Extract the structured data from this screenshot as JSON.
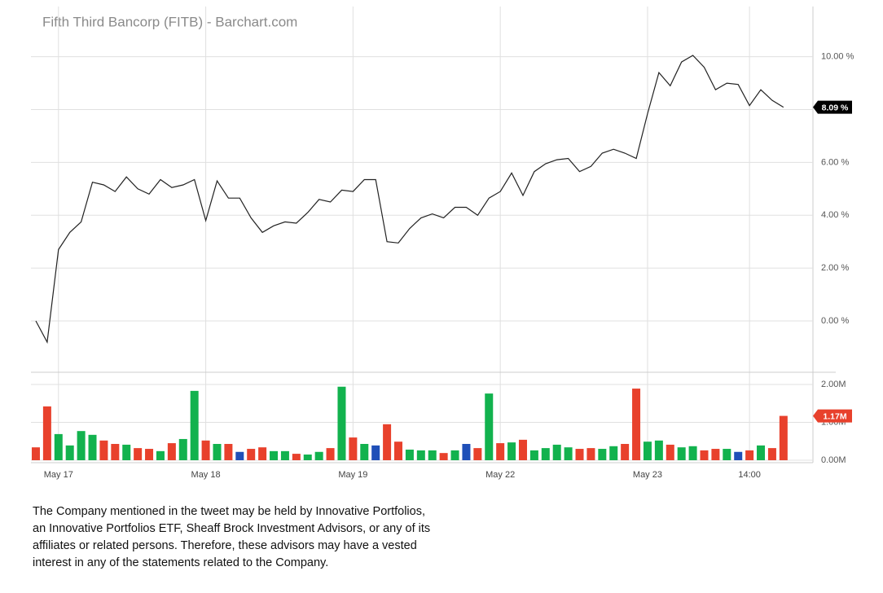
{
  "chart_data": [
    {
      "type": "line",
      "title": "Fifth Third Bancorp (FITB) - Barchart.com",
      "x": [
        0,
        1,
        2,
        3,
        4,
        5,
        6,
        7,
        8,
        9,
        10,
        11,
        12,
        13,
        14,
        15,
        16,
        17,
        18,
        19,
        20,
        21,
        22,
        23,
        24,
        25,
        26,
        27,
        28,
        29,
        30,
        31,
        32,
        33,
        34,
        35,
        36,
        37,
        38,
        39,
        40,
        41,
        42,
        43,
        44,
        45,
        46,
        47,
        48,
        49,
        50,
        51,
        52,
        53,
        54,
        55,
        56,
        57,
        58,
        59,
        60,
        61,
        62,
        63,
        64,
        65,
        66
      ],
      "xlim": [
        -0.43,
        68.6
      ],
      "values": [
        0.0,
        -0.8,
        2.7,
        3.35,
        3.75,
        5.25,
        5.15,
        4.9,
        5.45,
        5.0,
        4.8,
        5.35,
        5.05,
        5.15,
        5.35,
        3.8,
        5.3,
        4.65,
        4.65,
        3.9,
        3.35,
        3.6,
        3.75,
        3.7,
        4.1,
        4.6,
        4.5,
        4.95,
        4.9,
        5.35,
        5.35,
        3.0,
        2.95,
        3.5,
        3.9,
        4.05,
        3.9,
        4.3,
        4.3,
        4.0,
        4.65,
        4.9,
        5.6,
        4.75,
        5.65,
        5.95,
        6.1,
        6.15,
        5.65,
        5.85,
        6.35,
        6.5,
        6.35,
        6.15,
        7.85,
        9.4,
        8.9,
        9.8,
        10.05,
        9.6,
        8.75,
        9.0,
        8.95,
        8.15,
        8.75,
        8.35,
        8.09
      ],
      "color": "#222222",
      "ylim": [
        -1.88,
        11.9
      ],
      "yticks": [
        {
          "value": 0,
          "label": "0.00 %"
        },
        {
          "value": 2,
          "label": "2.00 %"
        },
        {
          "value": 4,
          "label": "4.00 %"
        },
        {
          "value": 6,
          "label": "6.00 %"
        },
        {
          "value": 8,
          "label": "8.00 %"
        },
        {
          "value": 10,
          "label": "10.00 %"
        }
      ],
      "grid": true,
      "last_label": {
        "value": 8.09,
        "label": "8.09 %",
        "color": "#000000"
      }
    },
    {
      "type": "bar",
      "x": [
        0,
        1,
        2,
        3,
        4,
        5,
        6,
        7,
        8,
        9,
        10,
        11,
        12,
        13,
        14,
        15,
        16,
        17,
        18,
        19,
        20,
        21,
        22,
        23,
        24,
        25,
        26,
        27,
        28,
        29,
        30,
        31,
        32,
        33,
        34,
        35,
        36,
        37,
        38,
        39,
        40,
        41,
        42,
        43,
        44,
        45,
        46,
        47,
        48,
        49,
        50,
        51,
        52,
        53,
        54,
        55,
        56,
        57,
        58,
        59,
        60,
        61,
        62,
        63,
        64,
        65,
        66
      ],
      "xlim": [
        -0.43,
        68.6
      ],
      "values": [
        0.34,
        1.42,
        0.69,
        0.39,
        0.77,
        0.67,
        0.52,
        0.43,
        0.41,
        0.32,
        0.3,
        0.24,
        0.45,
        0.56,
        1.83,
        0.52,
        0.43,
        0.43,
        0.22,
        0.3,
        0.34,
        0.24,
        0.24,
        0.17,
        0.15,
        0.22,
        0.32,
        1.94,
        0.6,
        0.43,
        0.39,
        0.95,
        0.49,
        0.28,
        0.26,
        0.26,
        0.19,
        0.26,
        0.43,
        0.32,
        1.76,
        0.45,
        0.47,
        0.54,
        0.26,
        0.32,
        0.41,
        0.34,
        0.3,
        0.32,
        0.3,
        0.37,
        0.43,
        1.89,
        0.49,
        0.52,
        0.41,
        0.34,
        0.37,
        0.26,
        0.3,
        0.3,
        0.22,
        0.26,
        0.39,
        0.32,
        1.17
      ],
      "colors": [
        "#e8412c",
        "#e8412c",
        "#12b24e",
        "#12b24e",
        "#12b24e",
        "#12b24e",
        "#e8412c",
        "#e8412c",
        "#12b24e",
        "#e8412c",
        "#e8412c",
        "#12b24e",
        "#e8412c",
        "#12b24e",
        "#12b24e",
        "#e8412c",
        "#12b24e",
        "#e8412c",
        "#1f4fb8",
        "#e8412c",
        "#e8412c",
        "#12b24e",
        "#12b24e",
        "#e8412c",
        "#12b24e",
        "#12b24e",
        "#e8412c",
        "#12b24e",
        "#e8412c",
        "#12b24e",
        "#1f4fb8",
        "#e8412c",
        "#e8412c",
        "#12b24e",
        "#12b24e",
        "#12b24e",
        "#e8412c",
        "#12b24e",
        "#1f4fb8",
        "#e8412c",
        "#12b24e",
        "#e8412c",
        "#12b24e",
        "#e8412c",
        "#12b24e",
        "#12b24e",
        "#12b24e",
        "#12b24e",
        "#e8412c",
        "#e8412c",
        "#12b24e",
        "#12b24e",
        "#e8412c",
        "#e8412c",
        "#12b24e",
        "#12b24e",
        "#e8412c",
        "#12b24e",
        "#12b24e",
        "#e8412c",
        "#e8412c",
        "#12b24e",
        "#1f4fb8",
        "#e8412c",
        "#12b24e",
        "#e8412c",
        "#e8412c"
      ],
      "ylim": [
        0,
        2.3
      ],
      "yticks": [
        {
          "value": 0,
          "label": "0.00M"
        },
        {
          "value": 1,
          "label": "1.00M"
        },
        {
          "value": 2,
          "label": "2.00M"
        }
      ],
      "xticks": [
        {
          "value": 2,
          "label": "May 17"
        },
        {
          "value": 15,
          "label": "May 18"
        },
        {
          "value": 28,
          "label": "May 19"
        },
        {
          "value": 41,
          "label": "May 22"
        },
        {
          "value": 54,
          "label": "May 23"
        },
        {
          "value": 63,
          "label": "14:00"
        }
      ],
      "grid": true,
      "last_label": {
        "value": 1.17,
        "label": "1.17M",
        "color": "#e8412c"
      }
    }
  ],
  "disclaimer": [
    "The Company mentioned in the tweet may be held by Innovative Portfolios,",
    "an Innovative Portfolios ETF, Sheaff Brock Investment Advisors, or any of its",
    "affiliates or related persons. Therefore, these advisors may have a vested",
    "interest in any of the statements related to the Company."
  ]
}
